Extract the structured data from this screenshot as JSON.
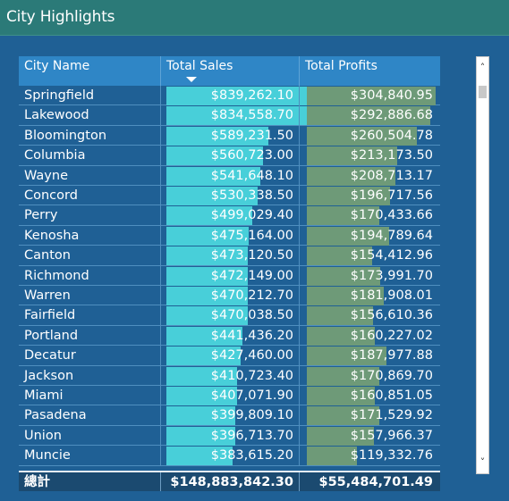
{
  "visual": {
    "title": "City Highlights"
  },
  "table": {
    "columns": [
      "City Name",
      "Total Sales",
      "Total Profits"
    ],
    "sorted_column": "Total Sales",
    "sort_direction": "descending",
    "rows": [
      {
        "city": "Springfield",
        "sales": "$839,262.10",
        "profit": "$304,840.95",
        "sales_value": 839262.1,
        "profit_value": 304840.95
      },
      {
        "city": "Lakewood",
        "sales": "$834,558.70",
        "profit": "$292,886.68",
        "sales_value": 834558.7,
        "profit_value": 292886.68
      },
      {
        "city": "Bloomington",
        "sales": "$589,231.50",
        "profit": "$260,504.78",
        "sales_value": 589231.5,
        "profit_value": 260504.78
      },
      {
        "city": "Columbia",
        "sales": "$560,723.00",
        "profit": "$213,173.50",
        "sales_value": 560723.0,
        "profit_value": 213173.5
      },
      {
        "city": "Wayne",
        "sales": "$541,648.10",
        "profit": "$208,713.17",
        "sales_value": 541648.1,
        "profit_value": 208713.17
      },
      {
        "city": "Concord",
        "sales": "$530,338.50",
        "profit": "$196,717.56",
        "sales_value": 530338.5,
        "profit_value": 196717.56
      },
      {
        "city": "Perry",
        "sales": "$499,029.40",
        "profit": "$170,433.66",
        "sales_value": 499029.4,
        "profit_value": 170433.66
      },
      {
        "city": "Kenosha",
        "sales": "$475,164.00",
        "profit": "$194,789.64",
        "sales_value": 475164.0,
        "profit_value": 194789.64
      },
      {
        "city": "Canton",
        "sales": "$473,120.50",
        "profit": "$154,412.96",
        "sales_value": 473120.5,
        "profit_value": 154412.96
      },
      {
        "city": "Richmond",
        "sales": "$472,149.00",
        "profit": "$173,991.70",
        "sales_value": 472149.0,
        "profit_value": 173991.7
      },
      {
        "city": "Warren",
        "sales": "$470,212.70",
        "profit": "$181,908.01",
        "sales_value": 470212.7,
        "profit_value": 181908.01
      },
      {
        "city": "Fairfield",
        "sales": "$470,038.50",
        "profit": "$156,610.36",
        "sales_value": 470038.5,
        "profit_value": 156610.36
      },
      {
        "city": "Portland",
        "sales": "$441,436.20",
        "profit": "$160,227.02",
        "sales_value": 441436.2,
        "profit_value": 160227.02
      },
      {
        "city": "Decatur",
        "sales": "$427,460.00",
        "profit": "$187,977.88",
        "sales_value": 427460.0,
        "profit_value": 187977.88
      },
      {
        "city": "Jackson",
        "sales": "$410,723.40",
        "profit": "$170,869.70",
        "sales_value": 410723.4,
        "profit_value": 170869.7
      },
      {
        "city": "Miami",
        "sales": "$407,071.90",
        "profit": "$160,851.05",
        "sales_value": 407071.9,
        "profit_value": 160851.05
      },
      {
        "city": "Pasadena",
        "sales": "$399,809.10",
        "profit": "$171,529.92",
        "sales_value": 399809.1,
        "profit_value": 171529.92
      },
      {
        "city": "Union",
        "sales": "$396,713.70",
        "profit": "$157,966.37",
        "sales_value": 396713.7,
        "profit_value": 157966.37
      },
      {
        "city": "Muncie",
        "sales": "$383,615.20",
        "profit": "$119,332.76",
        "sales_value": 383615.2,
        "profit_value": 119332.76
      }
    ],
    "total": {
      "label": "總計",
      "sales": "$148,883,842.30",
      "profit": "$55,484,701.49"
    }
  },
  "scrollbar": {
    "up_icon": "chevron-up-icon",
    "down_icon": "chevron-down-icon",
    "up_glyph": "˄",
    "down_glyph": "˅"
  },
  "colors": {
    "background": "#1f6095",
    "title_bar": "#2b7a78",
    "header": "#2f86c6",
    "sales_bar": "#48cfd9",
    "profit_bar": "#6e9a78",
    "total_row": "#1b4a70"
  }
}
